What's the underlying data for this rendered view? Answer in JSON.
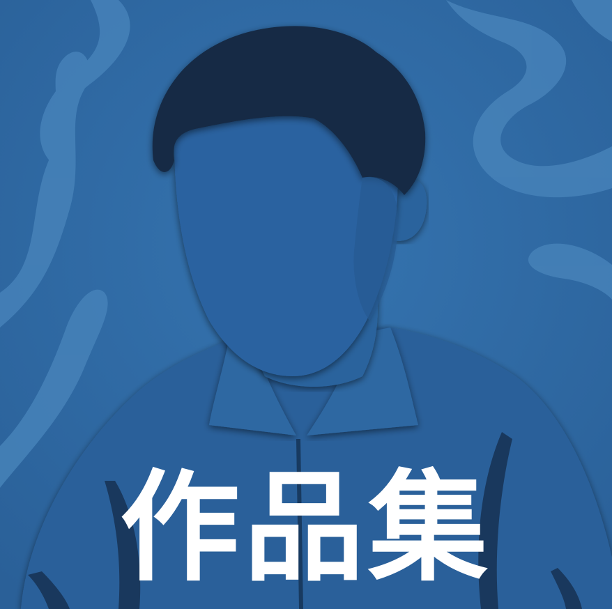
{
  "title": "作品集",
  "palette": {
    "background": "#2f6aa3",
    "swirl": "#4a85bb",
    "figure": "#275d94",
    "hair": "#152a45",
    "shirt": "#2a609a",
    "shadow": "#173457",
    "text": "#ffffff"
  },
  "icons": [
    "faceless-portrait-illustration"
  ]
}
